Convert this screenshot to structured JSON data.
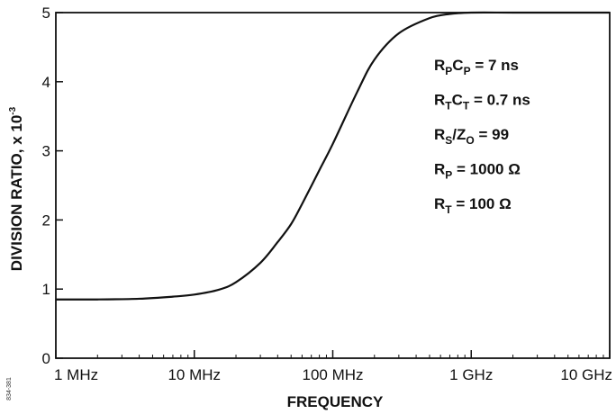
{
  "chart_data": {
    "type": "line",
    "xlabel": "FREQUENCY",
    "ylabel": "DIVISION RATIO, x 10",
    "ylabel_exponent": "-3",
    "x_scale": "log",
    "x_unit": "Hz",
    "xlim": [
      1000000,
      10000000000
    ],
    "ylim": [
      0,
      5
    ],
    "x_ticks": [
      1000000,
      10000000,
      100000000,
      1000000000,
      10000000000
    ],
    "x_tick_labels": [
      "1 MHz",
      "10 MHz",
      "100 MHz",
      "1 GHz",
      "10 GHz"
    ],
    "y_ticks": [
      0,
      1,
      2,
      3,
      4,
      5
    ],
    "y_tick_labels": [
      "0",
      "1",
      "2",
      "3",
      "4",
      "5"
    ],
    "grid": false,
    "series": [
      {
        "x": [
          1000000,
          2000000,
          4000000,
          7000000,
          10000000,
          15000000,
          20000000,
          30000000,
          40000000,
          50000000,
          60000000,
          80000000,
          100000000,
          150000000,
          200000000,
          300000000,
          500000000,
          700000000,
          1000000000,
          2000000000,
          5000000000,
          10000000000
        ],
        "y": [
          0.85,
          0.85,
          0.86,
          0.89,
          0.92,
          0.99,
          1.1,
          1.38,
          1.68,
          1.94,
          2.23,
          2.72,
          3.1,
          3.85,
          4.32,
          4.7,
          4.92,
          4.98,
          5.0,
          5.0,
          5.0,
          5.0
        ]
      }
    ],
    "annotations": [
      {
        "main": "R",
        "sub": "P",
        "main2": "C",
        "sub2": "P",
        "rest": " = 7 ns"
      },
      {
        "main": "R",
        "sub": "T",
        "main2": "C",
        "sub2": "T",
        "rest": " = 0.7 ns"
      },
      {
        "main": "R",
        "sub": "S",
        "main2": "/Z",
        "sub2": "O",
        "rest": " = 99"
      },
      {
        "main": "R",
        "sub": "P",
        "main2": "",
        "sub2": "",
        "rest": " = 1000 Ω"
      },
      {
        "main": "R",
        "sub": "T",
        "main2": "",
        "sub2": "",
        "rest": " = 100 Ω"
      }
    ],
    "figure_id": "834-381"
  }
}
